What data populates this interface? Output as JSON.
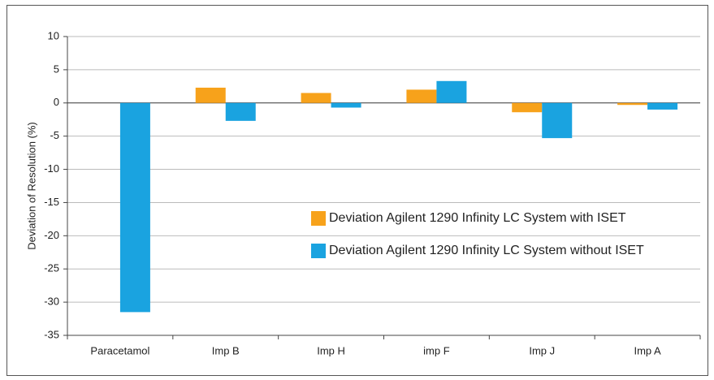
{
  "chart_data": {
    "type": "bar",
    "y_label": "Deviation of Resolution (%)",
    "categories": [
      "Paracetamol",
      "Imp B",
      "Imp H",
      "imp F",
      "Imp J",
      "Imp A"
    ],
    "series": [
      {
        "name": "Deviation Agilent 1290 Infinity LC System with ISET",
        "color": "#f7a21b",
        "values": [
          0,
          2.3,
          1.5,
          2.0,
          -1.4,
          -0.3
        ]
      },
      {
        "name": "Deviation Agilent 1290 Infinity LC System without ISET",
        "color": "#1aa3e0",
        "values": [
          -31.5,
          -2.7,
          -0.7,
          3.3,
          -5.3,
          -1.0
        ]
      }
    ],
    "ylim": [
      -35,
      10
    ],
    "yticks": [
      10,
      5,
      0,
      -5,
      -10,
      -15,
      -20,
      -25,
      -30,
      -35
    ],
    "grid": true,
    "legend": "right"
  }
}
